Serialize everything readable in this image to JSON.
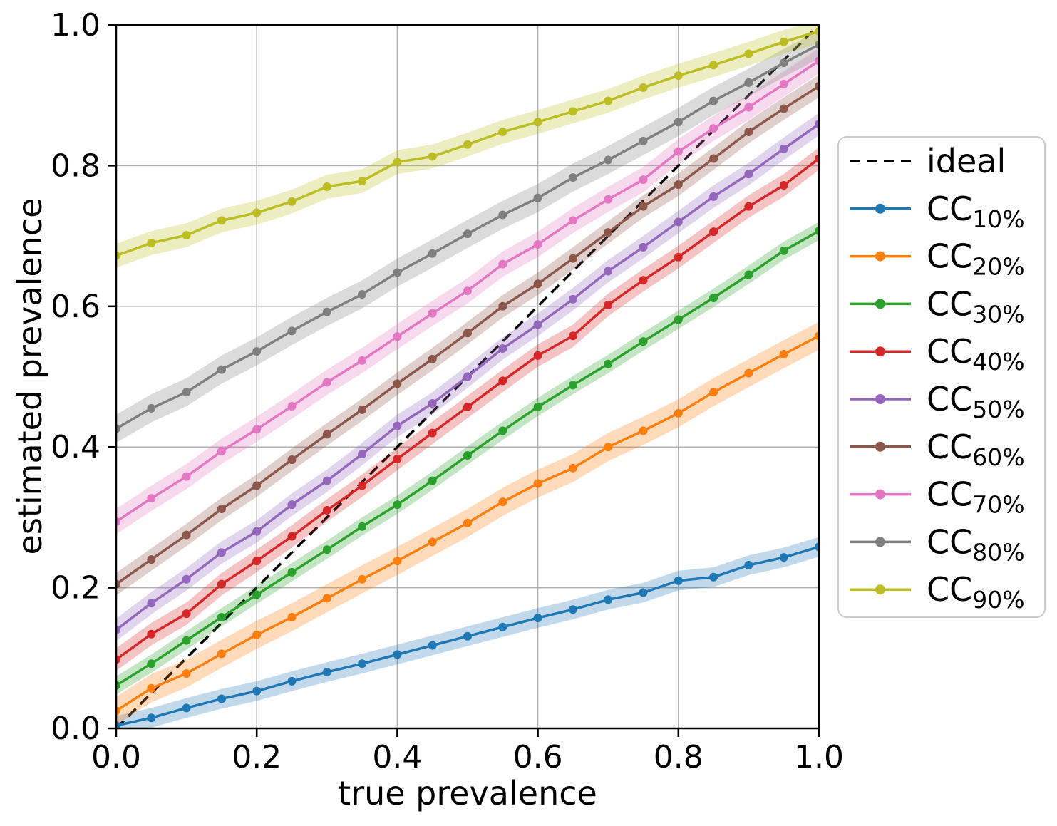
{
  "chart_data": {
    "type": "line",
    "title": "",
    "xlabel": "true prevalence",
    "ylabel": "estimated prevalence",
    "xlim": [
      0.0,
      1.0
    ],
    "ylim": [
      0.0,
      1.0
    ],
    "xticks": [
      "0.0",
      "0.2",
      "0.4",
      "0.6",
      "0.8",
      "1.0"
    ],
    "yticks": [
      "0.0",
      "0.2",
      "0.4",
      "0.6",
      "0.8",
      "1.0"
    ],
    "grid": true,
    "grid_color": "#b0b0b0",
    "legend_position": "center right outside",
    "ideal": {
      "label": "ideal",
      "style": "dashed",
      "color": "#000000",
      "x": [
        0.0,
        1.0
      ],
      "values": [
        0.0,
        1.0
      ]
    },
    "x": [
      0.0,
      0.05,
      0.1,
      0.15,
      0.2,
      0.25,
      0.3,
      0.35,
      0.4,
      0.45,
      0.5,
      0.55,
      0.6,
      0.65,
      0.7,
      0.75,
      0.8,
      0.85,
      0.9,
      0.95,
      1.0
    ],
    "series": [
      {
        "id": "cc10",
        "label_main": "CC",
        "label_sub": "10%",
        "color": "#1f77b4",
        "band_halfwidth": 0.014,
        "values": [
          0.004,
          0.015,
          0.029,
          0.042,
          0.053,
          0.067,
          0.08,
          0.092,
          0.105,
          0.118,
          0.131,
          0.144,
          0.157,
          0.169,
          0.183,
          0.193,
          0.21,
          0.215,
          0.232,
          0.243,
          0.258
        ]
      },
      {
        "id": "cc20",
        "label_main": "CC",
        "label_sub": "20%",
        "color": "#ff7f0e",
        "band_halfwidth": 0.02,
        "values": [
          0.025,
          0.057,
          0.078,
          0.106,
          0.133,
          0.158,
          0.185,
          0.212,
          0.238,
          0.265,
          0.292,
          0.322,
          0.348,
          0.37,
          0.4,
          0.423,
          0.448,
          0.478,
          0.505,
          0.532,
          0.558
        ]
      },
      {
        "id": "cc30",
        "label_main": "CC",
        "label_sub": "30%",
        "color": "#2ca02c",
        "band_halfwidth": 0.013,
        "values": [
          0.061,
          0.092,
          0.125,
          0.158,
          0.19,
          0.222,
          0.254,
          0.287,
          0.318,
          0.352,
          0.388,
          0.423,
          0.457,
          0.488,
          0.518,
          0.55,
          0.581,
          0.612,
          0.645,
          0.679,
          0.707
        ]
      },
      {
        "id": "cc40",
        "label_main": "CC",
        "label_sub": "40%",
        "color": "#d62728",
        "band_halfwidth": 0.016,
        "values": [
          0.098,
          0.134,
          0.163,
          0.205,
          0.238,
          0.273,
          0.31,
          0.345,
          0.383,
          0.42,
          0.457,
          0.494,
          0.53,
          0.558,
          0.602,
          0.637,
          0.67,
          0.706,
          0.742,
          0.772,
          0.81
        ]
      },
      {
        "id": "cc50",
        "label_main": "CC",
        "label_sub": "50%",
        "color": "#9467bd",
        "band_halfwidth": 0.016,
        "values": [
          0.14,
          0.178,
          0.212,
          0.25,
          0.28,
          0.318,
          0.352,
          0.39,
          0.43,
          0.462,
          0.5,
          0.54,
          0.574,
          0.61,
          0.65,
          0.684,
          0.72,
          0.756,
          0.788,
          0.824,
          0.859
        ]
      },
      {
        "id": "cc60",
        "label_main": "CC",
        "label_sub": "60%",
        "color": "#8c564b",
        "band_halfwidth": 0.016,
        "values": [
          0.205,
          0.24,
          0.275,
          0.312,
          0.345,
          0.382,
          0.418,
          0.453,
          0.49,
          0.525,
          0.562,
          0.6,
          0.632,
          0.668,
          0.705,
          0.742,
          0.773,
          0.81,
          0.848,
          0.881,
          0.913
        ]
      },
      {
        "id": "cc70",
        "label_main": "CC",
        "label_sub": "70%",
        "color": "#e377c2",
        "band_halfwidth": 0.018,
        "values": [
          0.294,
          0.327,
          0.358,
          0.394,
          0.425,
          0.458,
          0.492,
          0.523,
          0.557,
          0.59,
          0.622,
          0.66,
          0.688,
          0.722,
          0.752,
          0.78,
          0.82,
          0.853,
          0.883,
          0.916,
          0.949
        ]
      },
      {
        "id": "cc80",
        "label_main": "CC",
        "label_sub": "80%",
        "color": "#7f7f7f",
        "band_halfwidth": 0.02,
        "values": [
          0.426,
          0.455,
          0.478,
          0.51,
          0.536,
          0.565,
          0.592,
          0.617,
          0.648,
          0.675,
          0.703,
          0.73,
          0.754,
          0.783,
          0.808,
          0.835,
          0.862,
          0.892,
          0.918,
          0.946,
          0.972
        ]
      },
      {
        "id": "cc90",
        "label_main": "CC",
        "label_sub": "90%",
        "color": "#bcbd22",
        "band_halfwidth": 0.017,
        "values": [
          0.672,
          0.69,
          0.701,
          0.722,
          0.733,
          0.749,
          0.77,
          0.778,
          0.805,
          0.813,
          0.83,
          0.848,
          0.862,
          0.877,
          0.892,
          0.911,
          0.928,
          0.943,
          0.959,
          0.976,
          0.991
        ]
      }
    ]
  }
}
